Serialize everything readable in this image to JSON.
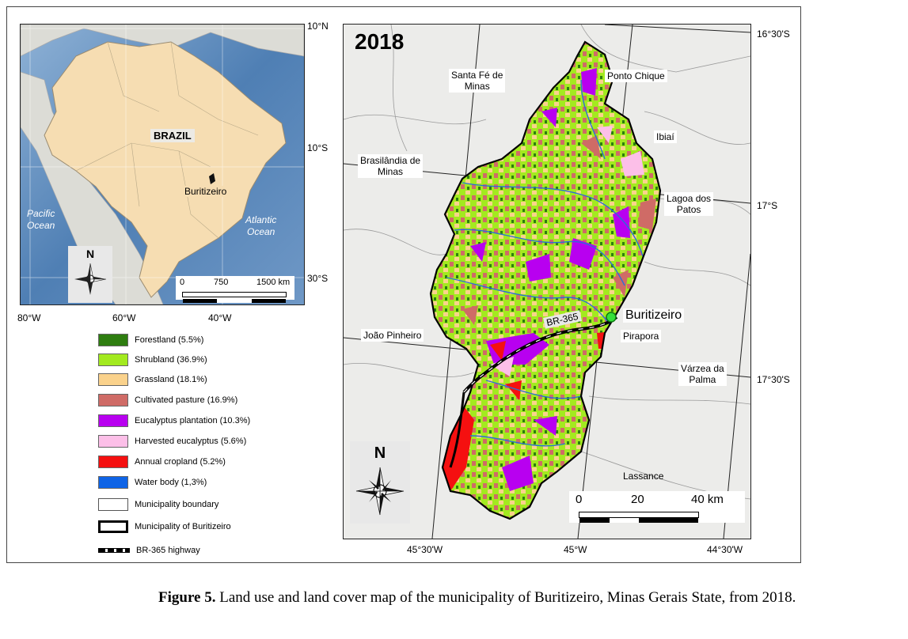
{
  "inset_map": {
    "country_label": "BRAZIL",
    "city_label": "Buritizeiro",
    "ocean_left": [
      "Pacific",
      "Ocean"
    ],
    "ocean_right": [
      "Atlantic",
      "Ocean"
    ],
    "north": "N",
    "scale": [
      "0",
      "750",
      "1500 km"
    ],
    "lat_ticks": [
      "10°N",
      "10°S",
      "30°S"
    ],
    "lon_ticks": [
      "80°W",
      "60°W",
      "40°W"
    ]
  },
  "main_map": {
    "year": "2018",
    "north": "N",
    "scale": [
      "0",
      "20",
      "40 km"
    ],
    "lat_ticks": [
      "16°30'S",
      "17°S",
      "17°30'S"
    ],
    "lon_ticks": [
      "45°30'W",
      "45°W",
      "44°30'W"
    ],
    "highway_label": "BR-365",
    "city_label": "Buritizeiro",
    "neighbors": [
      {
        "name": "santa-fe",
        "lines": [
          "Santa Fé de",
          "Minas"
        ]
      },
      {
        "name": "ponto-chique",
        "lines": [
          "Ponto Chique"
        ]
      },
      {
        "name": "ibiai",
        "lines": [
          "Ibiaí"
        ]
      },
      {
        "name": "brasilandia",
        "lines": [
          "Brasilândia de",
          "Minas"
        ]
      },
      {
        "name": "lagoa-patos",
        "lines": [
          "Lagoa dos",
          "Patos"
        ]
      },
      {
        "name": "joao-pinheiro",
        "lines": [
          "João Pinheiro"
        ]
      },
      {
        "name": "pirapora",
        "lines": [
          "Pirapora"
        ]
      },
      {
        "name": "varzea-palma",
        "lines": [
          "Várzea da",
          "Palma"
        ]
      },
      {
        "name": "lassance",
        "lines": [
          "Lassance"
        ]
      }
    ]
  },
  "legend": [
    {
      "label": "Forestland (5.5%)",
      "color": "#2e7d10"
    },
    {
      "label": "Shrubland (36.9%)",
      "color": "#a3ea1f"
    },
    {
      "label": "Grassland (18.1%)",
      "color": "#fad28c"
    },
    {
      "label": "Cultivated pasture (16.9%)",
      "color": "#cf6b66"
    },
    {
      "label": "Eucalyptus plantation (10.3%)",
      "color": "#b800f0"
    },
    {
      "label": "Harvested eucalyptus (5.6%)",
      "color": "#fcbfe8"
    },
    {
      "label": "Annual cropland (5.2%)",
      "color": "#f51010"
    },
    {
      "label": "Water body (1,3%)",
      "color": "#0f64e6"
    },
    {
      "label": "Municipality boundary",
      "color": "#ffffff"
    },
    {
      "label": "Municipality of Buritizeiro",
      "color": "#ffffff"
    },
    {
      "label": "BR-365 highway",
      "color": "#000000"
    }
  ],
  "caption": {
    "label": "Figure 5.",
    "text": " Land use and land cover map of the municipality of Buritizeiro, Minas Gerais State, from 2018."
  }
}
